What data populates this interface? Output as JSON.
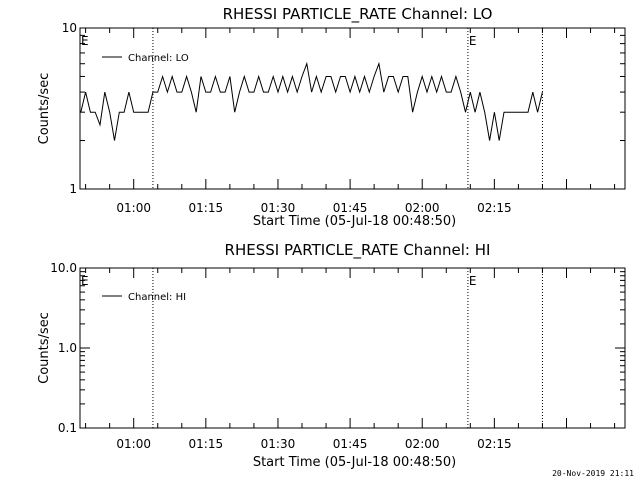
{
  "footer_timestamp": "20-Nov-2019 21:11",
  "chart_data": [
    {
      "type": "line",
      "title": "RHESSI PARTICLE_RATE Channel: LO",
      "xlabel": "Start Time (05-Jul-18 00:48:50)",
      "ylabel": "Counts/sec",
      "x_start": "00:48:50",
      "x_tick_labels": [
        "01:00",
        "01:15",
        "01:30",
        "01:45",
        "02:00",
        "02:15"
      ],
      "y_scale": "log",
      "ylim": [
        1,
        10
      ],
      "y_tick_labels": [
        "1",
        "10"
      ],
      "legend": "Channel: LO",
      "legend_position": "top-left",
      "event_marker": "E",
      "vertical_markers": [
        "01:04:00",
        "02:09:30",
        "02:25:00"
      ],
      "series": [
        {
          "name": "Channel: LO",
          "x": [
            "00:49:00",
            "00:50:00",
            "00:51:00",
            "00:52:00",
            "00:53:00",
            "00:54:00",
            "00:55:00",
            "00:56:00",
            "00:57:00",
            "00:58:00",
            "00:59:00",
            "01:00:00",
            "01:01:00",
            "01:02:00",
            "01:03:00",
            "01:04:00",
            "01:05:00",
            "01:06:00",
            "01:07:00",
            "01:08:00",
            "01:09:00",
            "01:10:00",
            "01:11:00",
            "01:12:00",
            "01:13:00",
            "01:14:00",
            "01:15:00",
            "01:16:00",
            "01:17:00",
            "01:18:00",
            "01:19:00",
            "01:20:00",
            "01:21:00",
            "01:22:00",
            "01:23:00",
            "01:24:00",
            "01:25:00",
            "01:26:00",
            "01:27:00",
            "01:28:00",
            "01:29:00",
            "01:30:00",
            "01:31:00",
            "01:32:00",
            "01:33:00",
            "01:34:00",
            "01:35:00",
            "01:36:00",
            "01:37:00",
            "01:38:00",
            "01:39:00",
            "01:40:00",
            "01:41:00",
            "01:42:00",
            "01:43:00",
            "01:44:00",
            "01:45:00",
            "01:46:00",
            "01:47:00",
            "01:48:00",
            "01:49:00",
            "01:50:00",
            "01:51:00",
            "01:52:00",
            "01:53:00",
            "01:54:00",
            "01:55:00",
            "01:56:00",
            "01:57:00",
            "01:58:00",
            "01:59:00",
            "02:00:00",
            "02:01:00",
            "02:02:00",
            "02:03:00",
            "02:04:00",
            "02:05:00",
            "02:06:00",
            "02:07:00",
            "02:08:00",
            "02:09:00",
            "02:10:00",
            "02:11:00",
            "02:12:00",
            "02:13:00",
            "02:14:00",
            "02:15:00",
            "02:16:00",
            "02:17:00",
            "02:18:00",
            "02:19:00",
            "02:20:00",
            "02:21:00",
            "02:22:00",
            "02:23:00",
            "02:24:00",
            "02:25:00"
          ],
          "y": [
            3,
            4,
            3,
            3,
            2.5,
            4,
            3,
            2,
            3,
            3,
            4,
            3,
            3,
            3,
            3,
            4,
            4,
            5,
            4,
            5,
            4,
            4,
            5,
            4,
            3,
            5,
            4,
            4,
            5,
            4,
            4,
            5,
            3,
            4,
            5,
            4,
            4,
            5,
            4,
            4,
            5,
            4,
            5,
            4,
            5,
            4,
            5,
            6,
            4,
            5,
            4,
            5,
            5,
            4,
            5,
            5,
            4,
            5,
            4,
            5,
            4,
            5,
            6,
            4,
            5,
            5,
            4,
            5,
            5,
            3,
            4,
            5,
            4,
            5,
            4,
            5,
            4,
            4,
            5,
            4,
            3,
            4,
            3,
            4,
            3,
            2,
            3,
            2,
            3,
            3,
            3,
            3,
            3,
            3,
            4,
            3,
            4
          ]
        }
      ]
    },
    {
      "type": "line",
      "title": "RHESSI PARTICLE_RATE Channel: HI",
      "xlabel": "Start Time (05-Jul-18 00:48:50)",
      "ylabel": "Counts/sec",
      "x_start": "00:48:50",
      "x_tick_labels": [
        "01:00",
        "01:15",
        "01:30",
        "01:45",
        "02:00",
        "02:15"
      ],
      "y_scale": "log",
      "ylim": [
        0.1,
        10
      ],
      "y_tick_labels": [
        "0.1",
        "1.0",
        "10.0"
      ],
      "legend": "Channel: HI",
      "legend_position": "top-left",
      "event_marker": "E",
      "vertical_markers": [
        "01:04:00",
        "02:09:30",
        "02:25:00"
      ],
      "series": [
        {
          "name": "Channel: HI",
          "x": [],
          "y": []
        }
      ]
    }
  ]
}
